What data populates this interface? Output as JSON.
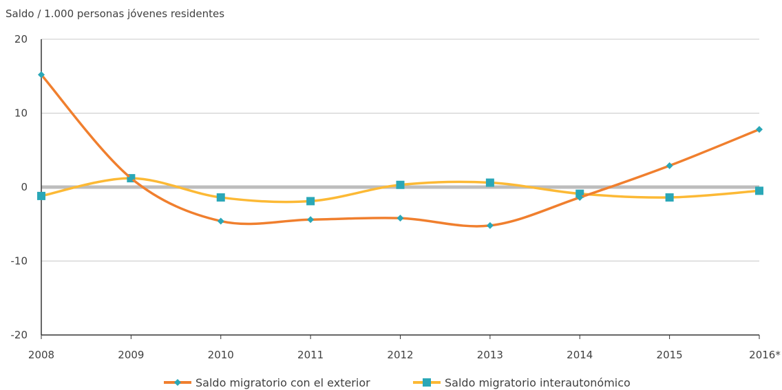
{
  "chart_data": {
    "type": "line",
    "ylabel": "Saldo / 1.000 personas jóvenes residentes",
    "categories": [
      "2008",
      "2009",
      "2010",
      "2011",
      "2012",
      "2013",
      "2014",
      "2015",
      "2016*"
    ],
    "ylim": [
      -20,
      20
    ],
    "yticks": [
      "20",
      "10",
      "0",
      "-10",
      "-20"
    ],
    "grid": true,
    "legend_position": "bottom",
    "series": [
      {
        "name": "Saldo migratorio con el exterior",
        "values": [
          15.2,
          1.2,
          -4.6,
          -4.4,
          -4.2,
          -5.2,
          -1.4,
          2.9,
          7.8
        ],
        "color": "#f07f2e",
        "marker": "diamond",
        "marker_color": "#2aa7b7"
      },
      {
        "name": "Saldo migratorio interautonómico",
        "values": [
          -1.2,
          1.2,
          -1.4,
          -1.9,
          0.3,
          0.6,
          -0.9,
          -1.4,
          -0.5
        ],
        "color": "#fcb935",
        "marker": "square",
        "marker_color": "#2aa7b7"
      }
    ],
    "zero_line_color": "#bdbdbd",
    "grid_color": "#c8c8c8"
  }
}
